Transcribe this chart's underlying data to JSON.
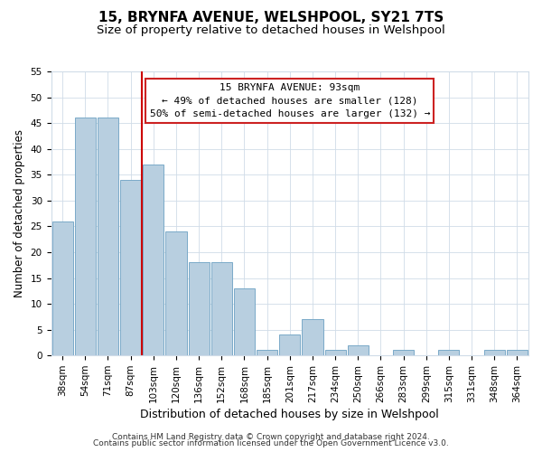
{
  "title": "15, BRYNFA AVENUE, WELSHPOOL, SY21 7TS",
  "subtitle": "Size of property relative to detached houses in Welshpool",
  "xlabel": "Distribution of detached houses by size in Welshpool",
  "ylabel": "Number of detached properties",
  "bar_labels": [
    "38sqm",
    "54sqm",
    "71sqm",
    "87sqm",
    "103sqm",
    "120sqm",
    "136sqm",
    "152sqm",
    "168sqm",
    "185sqm",
    "201sqm",
    "217sqm",
    "234sqm",
    "250sqm",
    "266sqm",
    "283sqm",
    "299sqm",
    "315sqm",
    "331sqm",
    "348sqm",
    "364sqm"
  ],
  "bar_values": [
    26,
    46,
    46,
    34,
    37,
    24,
    18,
    18,
    13,
    1,
    4,
    7,
    1,
    2,
    0,
    1,
    0,
    1,
    0,
    1,
    1
  ],
  "bar_color": "#b8cfe0",
  "bar_edge_color": "#7aaac8",
  "vline_x": 3.5,
  "vline_color": "#cc0000",
  "ylim": [
    0,
    55
  ],
  "yticks": [
    0,
    5,
    10,
    15,
    20,
    25,
    30,
    35,
    40,
    45,
    50,
    55
  ],
  "annotation_title": "15 BRYNFA AVENUE: 93sqm",
  "annotation_line1": "← 49% of detached houses are smaller (128)",
  "annotation_line2": "50% of semi-detached houses are larger (132) →",
  "footer1": "Contains HM Land Registry data © Crown copyright and database right 2024.",
  "footer2": "Contains public sector information licensed under the Open Government Licence v3.0.",
  "title_fontsize": 11,
  "subtitle_fontsize": 9.5,
  "xlabel_fontsize": 9,
  "ylabel_fontsize": 8.5,
  "tick_fontsize": 7.5,
  "annotation_fontsize": 8,
  "footer_fontsize": 6.5,
  "grid_color": "#d0dce8",
  "fig_width": 6.0,
  "fig_height": 5.0,
  "dpi": 100
}
